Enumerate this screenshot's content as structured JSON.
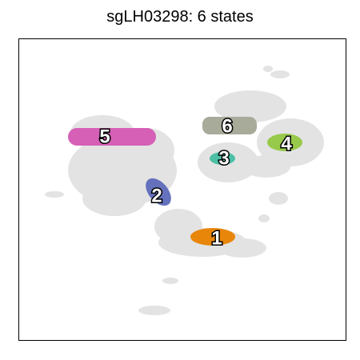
{
  "title": "sgLH03298: 6 states",
  "chart_data": {
    "type": "scatter",
    "title": "sgLH03298: 6 states",
    "xlabel": "",
    "ylabel": "",
    "axes_ticks": false,
    "background_points_color": "#e3e3e3",
    "clusters": [
      {
        "label": "1",
        "color": "#e8860a"
      },
      {
        "label": "2",
        "color": "#6571bd"
      },
      {
        "label": "3",
        "color": "#4dbfa4"
      },
      {
        "label": "4",
        "color": "#97c94a"
      },
      {
        "label": "5",
        "color": "#d660b6"
      },
      {
        "label": "6",
        "color": "#a9ab9a"
      }
    ]
  }
}
